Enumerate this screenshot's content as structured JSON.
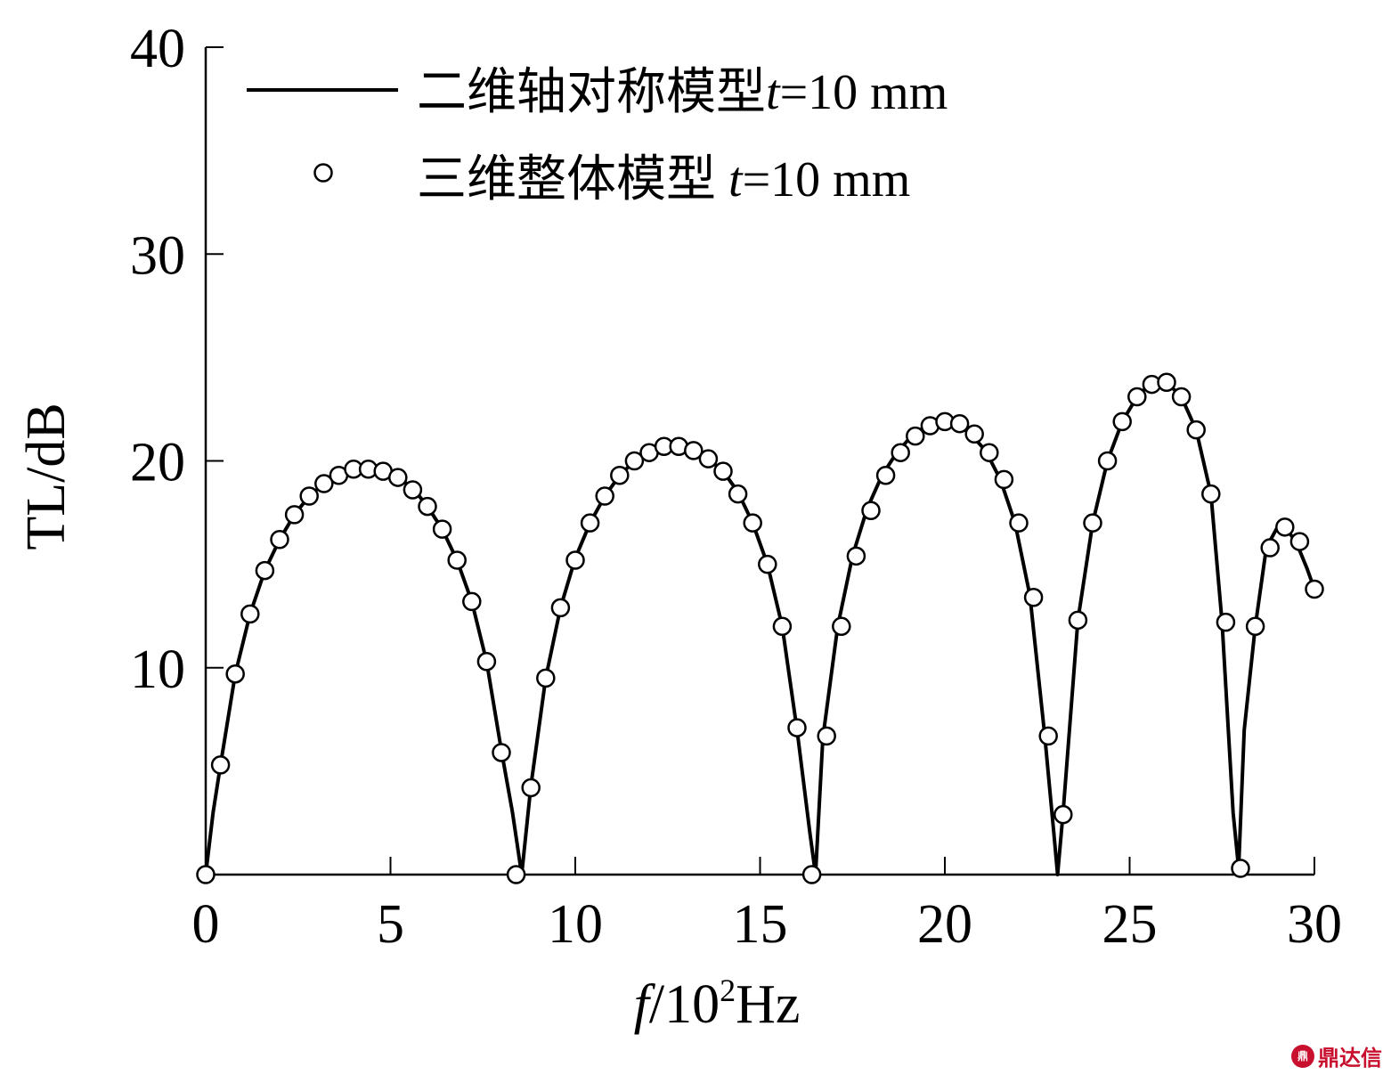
{
  "chart_data": {
    "type": "line",
    "title": "",
    "xlabel": "f/10²Hz",
    "xlabel_parts": {
      "var": "f",
      "rest": "/10",
      "sup": "2",
      "unit": "Hz"
    },
    "ylabel": "TL/dB",
    "xlim": [
      0,
      30
    ],
    "ylim": [
      0,
      40
    ],
    "x_ticks": [
      0,
      5,
      10,
      15,
      20,
      25,
      30
    ],
    "y_ticks": [
      10,
      20,
      30,
      40
    ],
    "y_tick_labels": [
      "10",
      "20",
      "30",
      "40"
    ],
    "x_tick_labels": [
      "0",
      "5",
      "10",
      "15",
      "20",
      "25",
      "30"
    ],
    "grid": false,
    "legend_position": "upper-left",
    "legend": [
      {
        "label_cn": "二维轴对称模型",
        "label_var": "t",
        "label_rest": "=10 mm",
        "marker": "line"
      },
      {
        "label_cn": "三维整体模型 ",
        "label_var": "t",
        "label_rest": "=10 mm",
        "marker": "circle"
      }
    ],
    "series": [
      {
        "name": "二维轴对称模型 t=10 mm",
        "style": "solid-line",
        "x": [
          0,
          0.2,
          0.4,
          0.8,
          1.2,
          1.6,
          2.0,
          2.4,
          2.8,
          3.2,
          3.6,
          4.0,
          4.4,
          4.8,
          5.2,
          5.6,
          6.0,
          6.4,
          6.8,
          7.2,
          7.6,
          8.0,
          8.3,
          8.55,
          8.8,
          9.2,
          9.6,
          10.0,
          10.4,
          10.8,
          11.2,
          11.6,
          12.0,
          12.4,
          12.8,
          13.2,
          13.6,
          14.0,
          14.4,
          14.8,
          15.2,
          15.6,
          16.0,
          16.35,
          16.5,
          16.7,
          17.1,
          17.5,
          17.9,
          18.3,
          18.7,
          19.1,
          19.5,
          19.9,
          20.3,
          20.7,
          21.1,
          21.5,
          21.9,
          22.3,
          22.7,
          22.95,
          23.05,
          23.2,
          23.6,
          24.0,
          24.4,
          24.8,
          25.2,
          25.6,
          26.0,
          26.4,
          26.8,
          27.2,
          27.5,
          27.8,
          27.95,
          28.1,
          28.4,
          28.7,
          29.0,
          29.2,
          29.5,
          29.8,
          30.0
        ],
        "y": [
          0,
          3.0,
          5.3,
          9.7,
          12.6,
          14.7,
          16.2,
          17.4,
          18.3,
          18.9,
          19.3,
          19.6,
          19.7,
          19.5,
          19.2,
          18.7,
          17.8,
          16.7,
          15.2,
          13.2,
          10.3,
          6.0,
          3.0,
          0,
          4.3,
          9.5,
          12.9,
          15.3,
          17.0,
          18.3,
          19.3,
          20.0,
          20.5,
          20.7,
          20.7,
          20.5,
          20.1,
          19.5,
          18.5,
          17.0,
          15.0,
          12.0,
          7.0,
          2.0,
          0,
          6.6,
          12.0,
          15.4,
          17.7,
          19.3,
          20.4,
          21.2,
          21.7,
          21.9,
          21.8,
          21.3,
          20.5,
          19.1,
          17.0,
          13.5,
          6.8,
          2.0,
          0,
          3.0,
          12.3,
          17.0,
          20.0,
          21.9,
          23.1,
          23.8,
          23.8,
          23.1,
          21.5,
          18.4,
          12.2,
          3.0,
          0.3,
          7.0,
          12.0,
          15.8,
          16.8,
          16.8,
          16.1,
          14.8,
          13.8
        ]
      },
      {
        "name": "三维整体模型 t=10 mm",
        "style": "open-circle",
        "x": [
          0,
          0.4,
          0.8,
          1.2,
          1.6,
          2.0,
          2.4,
          2.8,
          3.2,
          3.6,
          4.0,
          4.4,
          4.8,
          5.2,
          5.6,
          6.0,
          6.4,
          6.8,
          7.2,
          7.6,
          8.0,
          8.4,
          8.8,
          9.2,
          9.6,
          10.0,
          10.4,
          10.8,
          11.2,
          11.6,
          12.0,
          12.4,
          12.8,
          13.2,
          13.6,
          14.0,
          14.4,
          14.8,
          15.2,
          15.6,
          16.0,
          16.4,
          16.8,
          17.2,
          17.6,
          18.0,
          18.4,
          18.8,
          19.2,
          19.6,
          20.0,
          20.4,
          20.8,
          21.2,
          21.6,
          22.0,
          22.4,
          22.8,
          23.2,
          23.6,
          24.0,
          24.4,
          24.8,
          25.2,
          25.6,
          26.0,
          26.4,
          26.8,
          27.2,
          27.6,
          28.0,
          28.4,
          28.8,
          29.2,
          29.6,
          30.0
        ],
        "y": [
          0,
          5.3,
          9.7,
          12.6,
          14.7,
          16.2,
          17.4,
          18.3,
          18.9,
          19.3,
          19.6,
          19.6,
          19.5,
          19.2,
          18.6,
          17.8,
          16.7,
          15.2,
          13.2,
          10.3,
          5.9,
          0,
          4.2,
          9.5,
          12.9,
          15.2,
          17.0,
          18.3,
          19.3,
          20.0,
          20.4,
          20.7,
          20.7,
          20.5,
          20.1,
          19.5,
          18.4,
          17.0,
          15.0,
          12.0,
          7.1,
          0,
          6.7,
          12.0,
          15.4,
          17.6,
          19.3,
          20.4,
          21.2,
          21.7,
          21.9,
          21.8,
          21.3,
          20.4,
          19.1,
          17.0,
          13.4,
          6.7,
          2.9,
          12.3,
          17.0,
          20.0,
          21.9,
          23.1,
          23.7,
          23.8,
          23.1,
          21.5,
          18.4,
          12.2,
          0.3,
          12.0,
          15.8,
          16.8,
          16.1,
          13.8
        ]
      }
    ]
  },
  "watermark": {
    "logo": "鼎",
    "text": "鼎达信"
  }
}
